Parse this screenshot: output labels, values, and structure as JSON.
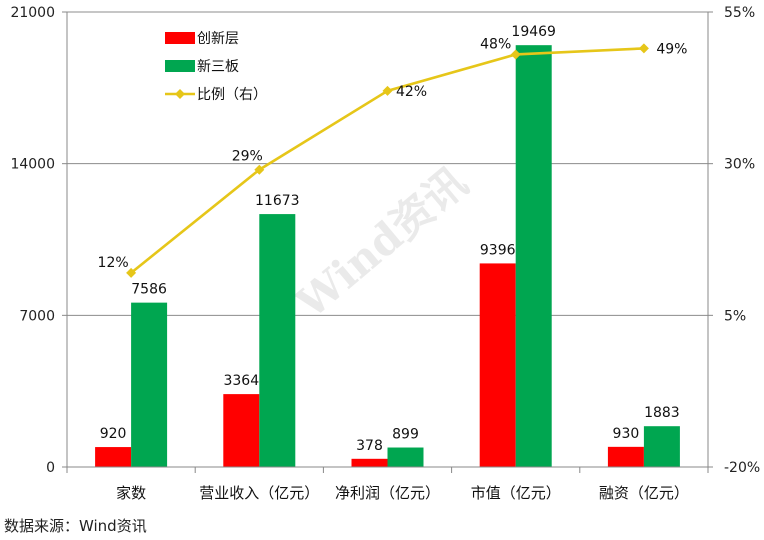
{
  "chart_data": {
    "type": "bar",
    "categories": [
      "家数",
      "营业收入（亿元）",
      "净利润（亿元）",
      "市值（亿元）",
      "融资（亿元）"
    ],
    "series": [
      {
        "name": "创新层",
        "values": [
          920,
          3364,
          378,
          9396,
          930
        ],
        "color": "#ff0000"
      },
      {
        "name": "新三板",
        "values": [
          7586,
          11673,
          899,
          19469,
          1883
        ],
        "color": "#00a650"
      }
    ],
    "line_series": {
      "name": "比例（右）",
      "values": [
        12,
        29,
        42,
        48,
        49
      ],
      "labels": [
        "12%",
        "29%",
        "42%",
        "48%",
        "49%"
      ],
      "color": "#e6c619"
    },
    "ylim": [
      0,
      21000
    ],
    "yticks": [
      "0",
      "7000",
      "14000",
      "21000"
    ],
    "y2lim": [
      -20,
      55
    ],
    "y2ticks": [
      "-20%",
      "5%",
      "30%",
      "55%"
    ],
    "grid": true,
    "legend_position": "top-left"
  },
  "watermark": "Wind资讯",
  "source": "数据来源：Wind资讯"
}
